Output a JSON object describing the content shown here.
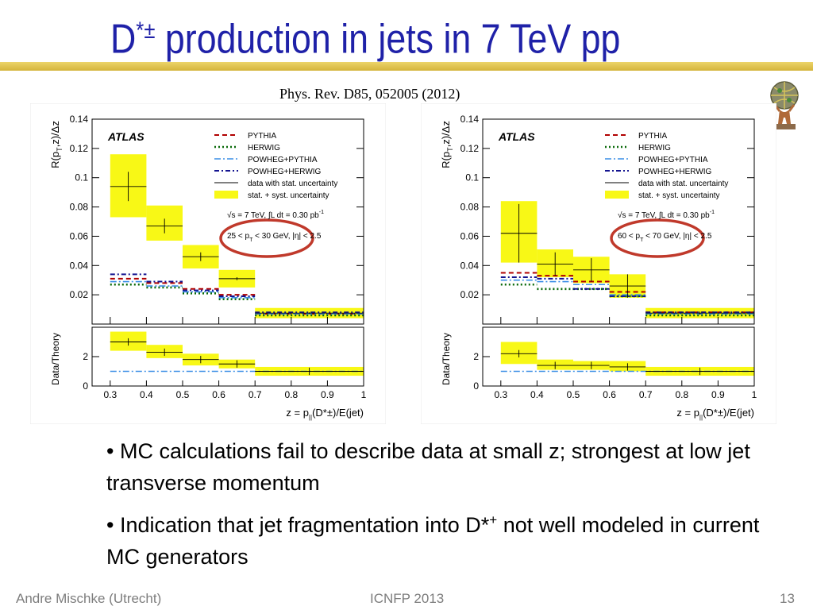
{
  "slide": {
    "title_main": "D",
    "title_sup": "*±",
    "title_rest": " production in jets in 7 TeV pp",
    "citation": "Phys. Rev. D85, 052005 (2012)",
    "bullets": [
      {
        "mark": "•",
        "text_before": "MC calculations fail to describe data at small z; strongest at low jet transverse momentum"
      },
      {
        "mark": "•",
        "text_before": "Indication that jet fragmentation into D*",
        "sup": "+",
        "text_after": " not well modeled in current MC generators"
      }
    ],
    "footer": {
      "author": "Andre Mischke (Utrecht)",
      "conference": "ICNFP 2013",
      "page": "13"
    },
    "colors": {
      "title": "#1f21a8",
      "rule": "#dcbc46",
      "highlight_circle": "#c0392b"
    },
    "logo_icon": "globe-with-atlas-figure-icon"
  },
  "chart_data": [
    {
      "type": "bar",
      "experiment_label": "ATLAS",
      "ylabel": {
        "main": "R(p",
        "sub": "T",
        "rest": ",z)/Δz"
      },
      "ratio_ylabel": "Data/Theory",
      "xlabel": {
        "main": "z = p",
        "sub": "||",
        "rest": "(D*±)/E(jet)"
      },
      "xlim": [
        0.25,
        1.0
      ],
      "ylim": [
        0,
        0.14
      ],
      "ratio_ylim": [
        0,
        4
      ],
      "xticks": [
        "0.3",
        "0.4",
        "0.5",
        "0.6",
        "0.7",
        "0.8",
        "0.9",
        "1"
      ],
      "yticks": [
        "0.02",
        "0.04",
        "0.06",
        "0.08",
        "0.1",
        "0.12",
        "0.14"
      ],
      "ratio_yticks": [
        "0",
        "2"
      ],
      "bins": [
        [
          0.3,
          0.4
        ],
        [
          0.4,
          0.5
        ],
        [
          0.5,
          0.6
        ],
        [
          0.6,
          0.7
        ],
        [
          0.7,
          1.0
        ]
      ],
      "legend": [
        "PYTHIA",
        "HERWIG",
        "POWHEG+PYTHIA",
        "POWHEG+HERWIG",
        "data with stat. uncertainty",
        "stat. + syst. uncertainty"
      ],
      "annotation_energy": "√s = 7 TeV,  ∫L dt = 0.30 pb",
      "annotation_energy_sup": "-1",
      "annotation_cut": {
        "a": "25 < p",
        "sub": "T",
        "b": " < 30 GeV, |η| < 2.5"
      },
      "data": {
        "values": [
          0.094,
          0.067,
          0.046,
          0.031,
          0.0075
        ],
        "stat_err": [
          0.01,
          0.005,
          0.003,
          0.001,
          0.0005
        ],
        "syst_band": [
          [
            0.073,
            0.116
          ],
          [
            0.057,
            0.081
          ],
          [
            0.038,
            0.054
          ],
          [
            0.025,
            0.037
          ],
          [
            0.004,
            0.011
          ]
        ]
      },
      "series": [
        {
          "name": "PYTHIA",
          "values": [
            0.031,
            0.028,
            0.024,
            0.02,
            0.007
          ]
        },
        {
          "name": "HERWIG",
          "values": [
            0.027,
            0.025,
            0.021,
            0.017,
            0.006
          ]
        },
        {
          "name": "POWHEG+PYTHIA",
          "values": [
            0.029,
            0.026,
            0.022,
            0.018,
            0.007
          ]
        },
        {
          "name": "POWHEG+HERWIG",
          "values": [
            0.034,
            0.029,
            0.023,
            0.019,
            0.008
          ]
        }
      ],
      "ratio": {
        "values": [
          3.0,
          2.3,
          1.8,
          1.5,
          1.0
        ],
        "band": [
          [
            2.4,
            3.7
          ],
          [
            1.9,
            2.8
          ],
          [
            1.4,
            2.2
          ],
          [
            1.2,
            1.8
          ],
          [
            0.7,
            1.3
          ]
        ],
        "reference": 1.0
      },
      "highlight": "circle around the p_T range label"
    },
    {
      "type": "bar",
      "experiment_label": "ATLAS",
      "ylabel": {
        "main": "R(p",
        "sub": "T",
        "rest": ",z)/Δz"
      },
      "ratio_ylabel": "Data/Theory",
      "xlabel": {
        "main": "z = p",
        "sub": "||",
        "rest": "(D*±)/E(jet)"
      },
      "xlim": [
        0.25,
        1.0
      ],
      "ylim": [
        0,
        0.14
      ],
      "ratio_ylim": [
        0,
        4
      ],
      "xticks": [
        "0.3",
        "0.4",
        "0.5",
        "0.6",
        "0.7",
        "0.8",
        "0.9",
        "1"
      ],
      "yticks": [
        "0.02",
        "0.04",
        "0.06",
        "0.08",
        "0.1",
        "0.12",
        "0.14"
      ],
      "ratio_yticks": [
        "0",
        "2"
      ],
      "bins": [
        [
          0.3,
          0.4
        ],
        [
          0.4,
          0.5
        ],
        [
          0.5,
          0.6
        ],
        [
          0.6,
          0.7
        ],
        [
          0.7,
          1.0
        ]
      ],
      "legend": [
        "PYTHIA",
        "HERWIG",
        "POWHEG+PYTHIA",
        "POWHEG+HERWIG",
        "data with stat. uncertainty",
        "stat. + syst. uncertainty"
      ],
      "annotation_energy": "√s = 7 TeV,  ∫L dt = 0.30 pb",
      "annotation_energy_sup": "-1",
      "annotation_cut": {
        "a": "60 < p",
        "sub": "T",
        "b": " < 70 GeV, |η| < 2.5"
      },
      "data": {
        "values": [
          0.062,
          0.041,
          0.037,
          0.026,
          0.0075
        ],
        "stat_err": [
          0.02,
          0.008,
          0.008,
          0.008,
          0.001
        ],
        "syst_band": [
          [
            0.042,
            0.084
          ],
          [
            0.032,
            0.051
          ],
          [
            0.028,
            0.046
          ],
          [
            0.018,
            0.034
          ],
          [
            0.004,
            0.011
          ]
        ]
      },
      "series": [
        {
          "name": "PYTHIA",
          "values": [
            0.035,
            0.033,
            0.029,
            0.022,
            0.008
          ]
        },
        {
          "name": "HERWIG",
          "values": [
            0.027,
            0.024,
            0.024,
            0.019,
            0.006
          ]
        },
        {
          "name": "POWHEG+PYTHIA",
          "values": [
            0.03,
            0.029,
            0.027,
            0.02,
            0.007
          ]
        },
        {
          "name": "POWHEG+HERWIG",
          "values": [
            0.032,
            0.031,
            0.024,
            0.019,
            0.008
          ]
        }
      ],
      "ratio": {
        "values": [
          2.2,
          1.4,
          1.4,
          1.3,
          1.0
        ],
        "band": [
          [
            1.5,
            3.0
          ],
          [
            1.1,
            1.8
          ],
          [
            1.1,
            1.7
          ],
          [
            1.0,
            1.7
          ],
          [
            0.7,
            1.3
          ]
        ],
        "reference": 1.0
      },
      "highlight": "circle around the p_T range label"
    }
  ]
}
